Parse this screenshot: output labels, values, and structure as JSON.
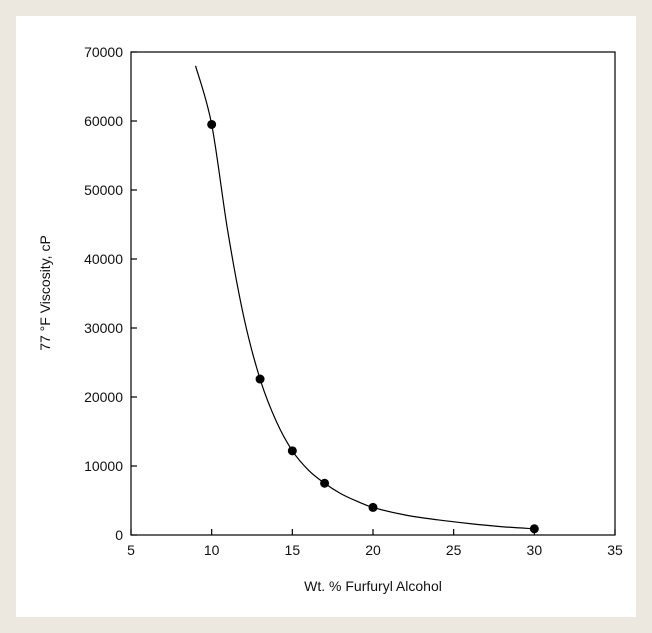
{
  "chart_data": {
    "type": "scatter",
    "title": "",
    "xlabel": "Wt. % Furfuryl Alcohol",
    "ylabel": "77 °F Viscosity, cP",
    "xlim": [
      5,
      35
    ],
    "ylim": [
      0,
      70000
    ],
    "xticks": [
      5,
      10,
      15,
      20,
      25,
      30,
      35
    ],
    "yticks": [
      0,
      10000,
      20000,
      30000,
      40000,
      50000,
      60000,
      70000
    ],
    "grid": false,
    "legend": "none",
    "series": [
      {
        "points": [
          {
            "x": 10,
            "y": 59500
          },
          {
            "x": 13,
            "y": 22600
          },
          {
            "x": 15,
            "y": 12200
          },
          {
            "x": 17,
            "y": 7500
          },
          {
            "x": 20,
            "y": 4000
          },
          {
            "x": 30,
            "y": 900
          }
        ]
      }
    ],
    "fit_curve": [
      {
        "x": 9,
        "y": 68000
      },
      {
        "x": 10,
        "y": 59500
      },
      {
        "x": 11,
        "y": 44000
      },
      {
        "x": 12,
        "y": 31500
      },
      {
        "x": 13,
        "y": 22600
      },
      {
        "x": 14,
        "y": 16500
      },
      {
        "x": 15,
        "y": 12200
      },
      {
        "x": 16,
        "y": 9400
      },
      {
        "x": 17,
        "y": 7500
      },
      {
        "x": 18,
        "y": 6000
      },
      {
        "x": 19,
        "y": 4900
      },
      {
        "x": 20,
        "y": 4000
      },
      {
        "x": 22,
        "y": 2900
      },
      {
        "x": 24,
        "y": 2200
      },
      {
        "x": 26,
        "y": 1650
      },
      {
        "x": 28,
        "y": 1200
      },
      {
        "x": 30,
        "y": 900
      }
    ],
    "colors": {
      "points": "#000000",
      "curve": "#000000",
      "axis": "#000000"
    }
  }
}
